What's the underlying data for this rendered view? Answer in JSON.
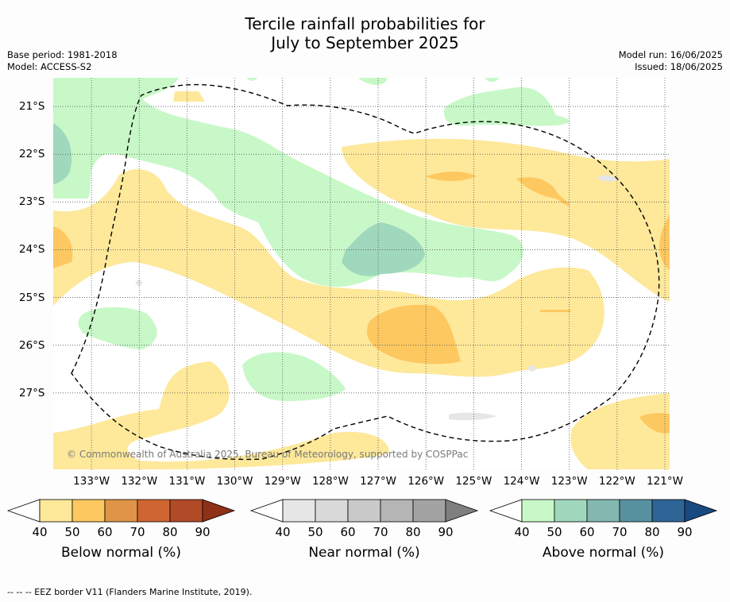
{
  "title_line1": "Tercile rainfall probabilities for",
  "title_line2": "July to September 2025",
  "meta_left": [
    "Base period: 1981-2018",
    "Model: ACCESS-S2"
  ],
  "meta_right": [
    "Model run: 16/06/2025",
    "Issued: 18/06/2025"
  ],
  "copyright": "© Commonwealth of Australia 2025, Bureau of Meteorology, supported by COSPPac",
  "map_data": {
    "lon_labels": [
      "133°W",
      "132°W",
      "131°W",
      "130°W",
      "129°W",
      "128°W",
      "127°W",
      "126°W",
      "125°W",
      "124°W",
      "123°W",
      "122°W",
      "121°W"
    ],
    "lat_labels": [
      "21°S",
      "22°S",
      "23°S",
      "24°S",
      "25°S",
      "26°S",
      "27°S"
    ],
    "lon_range": [
      -133.8,
      -120.9
    ],
    "lat_range": [
      -28.6,
      -20.4
    ]
  },
  "colorbars": [
    {
      "title": "Below normal (%)",
      "ticks": [
        "40",
        "50",
        "60",
        "70",
        "80",
        "90"
      ],
      "colors": [
        "#fee89a",
        "#fdc860",
        "#e09447",
        "#cf6631",
        "#b14a27",
        "#8f3118"
      ]
    },
    {
      "title": "Near normal (%)",
      "ticks": [
        "40",
        "50",
        "60",
        "70",
        "80",
        "90"
      ],
      "colors": [
        "#e6e6e6",
        "#d9d9d9",
        "#c9c9c9",
        "#b5b5b5",
        "#a3a3a3",
        "#7f7f7f"
      ]
    },
    {
      "title": "Above normal (%)",
      "ticks": [
        "40",
        "50",
        "60",
        "70",
        "80",
        "90"
      ],
      "colors": [
        "#c8f8c8",
        "#a0d8bd",
        "#82b8b0",
        "#5892a0",
        "#2f6496",
        "#184a80"
      ]
    }
  ],
  "legend_footnote": "--  --  -- EEZ border V11 (Flanders Marine Institute, 2019)."
}
